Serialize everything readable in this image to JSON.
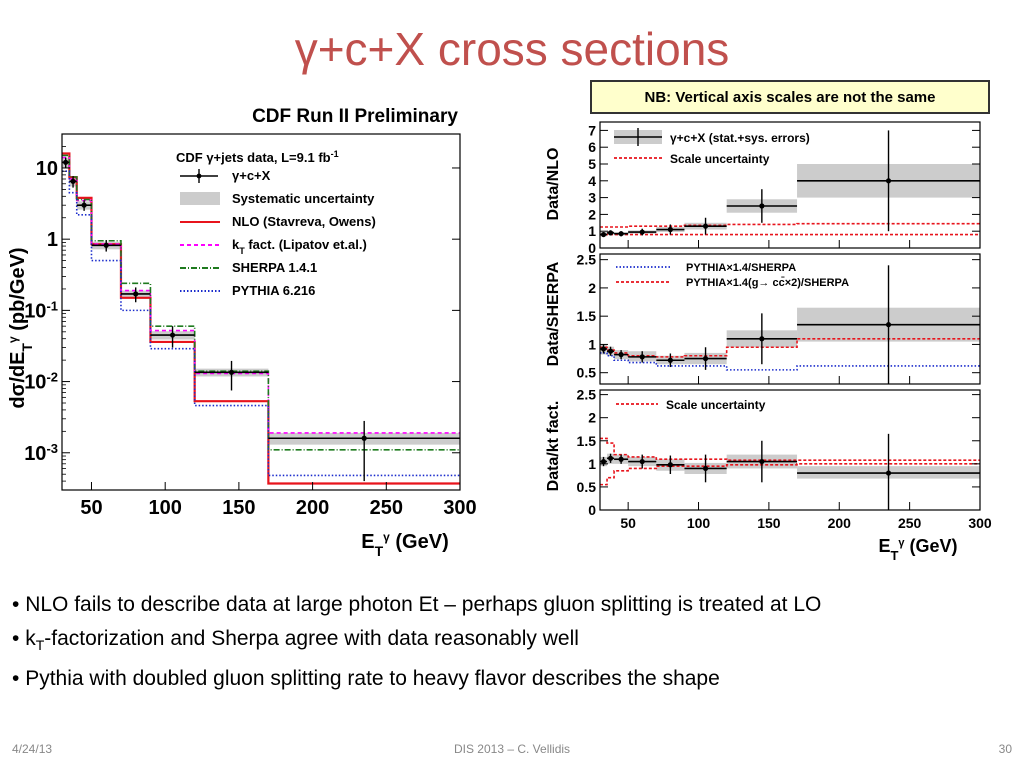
{
  "slide": {
    "title": "γ+c+X cross sections",
    "nb_note": "NB: Vertical axis scales are not the same",
    "bullets": [
      {
        "bullet": "•",
        "text": "NLO fails to describe data at large photon Et – perhaps gluon splitting is treated at LO"
      },
      {
        "bullet": "•",
        "pre": "k",
        "sub": "T",
        "post": "-factorization and Sherpa agree with data reasonably well"
      },
      {
        "bullet": "•",
        "text": "Pythia with doubled gluon splitting rate to heavy flavor describes the shape"
      }
    ],
    "footer": {
      "date": "4/24/13",
      "center": "DIS 2013 – C. Vellidis",
      "page": "30"
    }
  },
  "chart_data": [
    {
      "type": "line",
      "title": "CDF Run II Preliminary",
      "xlabel": "E_T^γ (GeV)",
      "ylabel": "dσ/dE_T^γ (pb/GeV)",
      "xlim": [
        30,
        300
      ],
      "ylim": [
        0.0003,
        30
      ],
      "y_scale": "log",
      "x_ticks": [
        50,
        100,
        150,
        200,
        250,
        300
      ],
      "y_ticks": [
        {
          "v": 10,
          "label": "10"
        },
        {
          "v": 1,
          "label": "1"
        },
        {
          "v": 0.1,
          "label": "10-1"
        },
        {
          "v": 0.01,
          "label": "10-2"
        },
        {
          "v": 0.001,
          "label": "10-3"
        }
      ],
      "legend_header": "CDF γ+jets data, L=9.1 fb-1",
      "legend_placement": "top-right",
      "bin_edges": [
        30,
        35,
        40,
        50,
        70,
        90,
        120,
        170,
        300
      ],
      "data": {
        "name": "γ+c+X",
        "x": [
          32.5,
          37.5,
          45,
          60,
          80,
          105,
          145,
          235
        ],
        "y": [
          12,
          6.5,
          3.0,
          0.82,
          0.17,
          0.045,
          0.0135,
          0.0016
        ],
        "yerr": [
          2.0,
          1.2,
          0.5,
          0.15,
          0.04,
          0.015,
          0.006,
          0.0012
        ]
      },
      "series": [
        {
          "name": "Systematic uncertainty",
          "kind": "band",
          "lo": [
            10,
            5.5,
            2.6,
            0.72,
            0.15,
            0.039,
            0.0118,
            0.0013
          ],
          "hi": [
            14,
            7.5,
            3.4,
            0.92,
            0.19,
            0.051,
            0.0152,
            0.0019
          ],
          "color": "#cccccc"
        },
        {
          "name": "NLO (Stavreva, Owens)",
          "kind": "step",
          "values": [
            16,
            7.4,
            3.8,
            0.85,
            0.15,
            0.036,
            0.0053,
            0.00037
          ],
          "color": "#e8141c"
        },
        {
          "name": "k_T fact. (Lipatov et.al.)",
          "kind": "step",
          "values": [
            14,
            7.0,
            3.5,
            0.85,
            0.19,
            0.052,
            0.013,
            0.0019
          ],
          "color": "#ff00ff"
        },
        {
          "name": "SHERPA 1.4.1",
          "kind": "step",
          "values": [
            15,
            7.5,
            3.6,
            0.95,
            0.24,
            0.06,
            0.014,
            0.0011
          ],
          "color": "#1f7a1f"
        },
        {
          "name": "PYTHIA 6.216",
          "kind": "step",
          "values": [
            9,
            4.5,
            2.2,
            0.5,
            0.1,
            0.029,
            0.0046,
            0.00048
          ],
          "color": "#1a2bcc"
        }
      ]
    },
    {
      "type": "line",
      "ylabel": "Data/NLO",
      "xlim": [
        30,
        300
      ],
      "ylim": [
        0,
        7.5
      ],
      "y_ticks": [
        0,
        1,
        2,
        3,
        4,
        5,
        6,
        7
      ],
      "legend_placement": "top-left",
      "bin_edges": [
        30,
        35,
        40,
        50,
        70,
        90,
        120,
        170,
        300
      ],
      "data": {
        "name": "γ+c+X (stat.+sys. errors)",
        "x": [
          32.5,
          37.5,
          45,
          60,
          80,
          105,
          145,
          235
        ],
        "y": [
          0.8,
          0.9,
          0.85,
          0.95,
          1.1,
          1.3,
          2.5,
          4.0
        ],
        "yerr": [
          0.15,
          0.15,
          0.15,
          0.2,
          0.3,
          0.5,
          1.0,
          3.0
        ]
      },
      "series": [
        {
          "name": "systematic band",
          "kind": "band",
          "lo": [
            0.7,
            0.8,
            0.75,
            0.85,
            0.95,
            1.1,
            2.1,
            3.0
          ],
          "hi": [
            0.95,
            1.0,
            0.95,
            1.05,
            1.25,
            1.5,
            2.9,
            5.0
          ],
          "color": "#cccccc"
        },
        {
          "name": "Scale uncertainty",
          "kind": "band-lines",
          "lo": [
            0.8,
            0.8,
            0.8,
            0.8,
            0.8,
            0.8,
            0.8,
            0.8
          ],
          "hi": [
            1.25,
            1.25,
            1.25,
            1.3,
            1.3,
            1.35,
            1.4,
            1.45
          ],
          "color": "#e8141c"
        }
      ]
    },
    {
      "type": "line",
      "ylabel": "Data/SHERPA",
      "xlim": [
        30,
        300
      ],
      "ylim": [
        0.3,
        2.6
      ],
      "y_ticks": [
        0.5,
        1,
        1.5,
        2,
        2.5
      ],
      "legend_placement": "top-left",
      "bin_edges": [
        30,
        35,
        40,
        50,
        70,
        90,
        120,
        170,
        300
      ],
      "data": {
        "name": "Data/SHERPA",
        "x": [
          32.5,
          37.5,
          45,
          60,
          80,
          105,
          145,
          235
        ],
        "y": [
          0.92,
          0.88,
          0.82,
          0.78,
          0.72,
          0.75,
          1.1,
          1.35
        ],
        "yerr": [
          0.08,
          0.08,
          0.08,
          0.1,
          0.12,
          0.2,
          0.45,
          1.05
        ]
      },
      "series": [
        {
          "name": "systematic band",
          "kind": "band",
          "lo": [
            0.82,
            0.8,
            0.74,
            0.7,
            0.65,
            0.65,
            0.95,
            1.05
          ],
          "hi": [
            1.0,
            0.96,
            0.9,
            0.88,
            0.8,
            0.85,
            1.25,
            1.65
          ],
          "color": "#cccccc"
        },
        {
          "name": "PYTHIA×1.4/SHERPA",
          "kind": "step",
          "values": [
            0.85,
            0.8,
            0.72,
            0.68,
            0.62,
            0.62,
            0.55,
            0.62
          ],
          "color": "#1a2bcc"
        },
        {
          "name": "PYTHIA×1.4(g→ cc̄×2)/SHERPA",
          "kind": "step",
          "values": [
            0.95,
            0.9,
            0.85,
            0.8,
            0.78,
            0.8,
            0.95,
            1.1
          ],
          "color": "#e8141c"
        }
      ]
    },
    {
      "type": "line",
      "ylabel": "Data/kt fact.",
      "xlim": [
        30,
        300
      ],
      "ylim": [
        0,
        2.6
      ],
      "y_ticks": [
        0,
        0.5,
        1,
        1.5,
        2,
        2.5
      ],
      "legend_placement": "top-left",
      "bin_edges": [
        30,
        35,
        40,
        50,
        70,
        90,
        120,
        170,
        300
      ],
      "data": {
        "name": "Data/kt fact.",
        "x": [
          32.5,
          37.5,
          45,
          60,
          80,
          105,
          145,
          235
        ],
        "y": [
          1.05,
          1.12,
          1.1,
          1.05,
          0.98,
          0.9,
          1.05,
          0.8
        ],
        "yerr": [
          0.1,
          0.1,
          0.1,
          0.15,
          0.2,
          0.3,
          0.45,
          0.85
        ]
      },
      "series": [
        {
          "name": "systematic band",
          "kind": "band",
          "lo": [
            0.95,
            1.0,
            1.0,
            0.95,
            0.85,
            0.78,
            0.9,
            0.68
          ],
          "hi": [
            1.15,
            1.22,
            1.2,
            1.15,
            1.1,
            1.02,
            1.2,
            0.95
          ],
          "color": "#cccccc"
        },
        {
          "name": "Scale uncertainty",
          "kind": "band-lines",
          "lo": [
            0.55,
            0.7,
            0.85,
            0.9,
            0.95,
            0.95,
            0.98,
            1.0
          ],
          "hi": [
            1.55,
            1.45,
            1.2,
            1.15,
            1.1,
            1.1,
            1.08,
            1.08
          ],
          "color": "#e8141c"
        }
      ],
      "xlabel": "E_T^γ (GeV)",
      "x_ticks": [
        50,
        100,
        150,
        200,
        250,
        300
      ]
    }
  ]
}
